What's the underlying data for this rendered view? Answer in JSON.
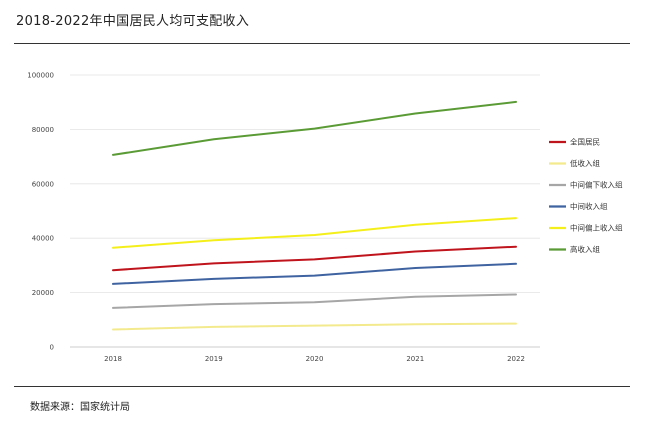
{
  "header": {
    "title": "2018-2022年中国居民人均可支配收入"
  },
  "footer": {
    "source": "数据来源：国家统计局"
  },
  "chart_data": {
    "type": "line",
    "title": "2018-2022年中国居民人均可支配收入",
    "xlabel": "",
    "ylabel": "",
    "x": [
      "2018",
      "2019",
      "2020",
      "2021",
      "2022"
    ],
    "ylim": [
      0,
      100000
    ],
    "yticks": [
      0,
      20000,
      40000,
      60000,
      80000,
      100000
    ],
    "grid": true,
    "legend_position": "right",
    "series": [
      {
        "name": "全国居民",
        "color": "#c0141c",
        "values": [
          28228,
          30733,
          32189,
          35128,
          36883
        ]
      },
      {
        "name": "低收入组",
        "color": "#f3ea8e",
        "values": [
          6440,
          7380,
          7869,
          8333,
          8601
        ]
      },
      {
        "name": "中间偏下收入组",
        "color": "#a6a6a6",
        "values": [
          14361,
          15777,
          16443,
          18446,
          19303
        ]
      },
      {
        "name": "中间收入组",
        "color": "#3f63a0",
        "values": [
          23189,
          25035,
          26249,
          29053,
          30598
        ]
      },
      {
        "name": "中间偏上收入组",
        "color": "#f4ef1a",
        "values": [
          36471,
          39230,
          41172,
          44949,
          47397
        ]
      },
      {
        "name": "高收入组",
        "color": "#5b9b36",
        "values": [
          70640,
          76401,
          80294,
          85836,
          90116
        ]
      }
    ]
  }
}
